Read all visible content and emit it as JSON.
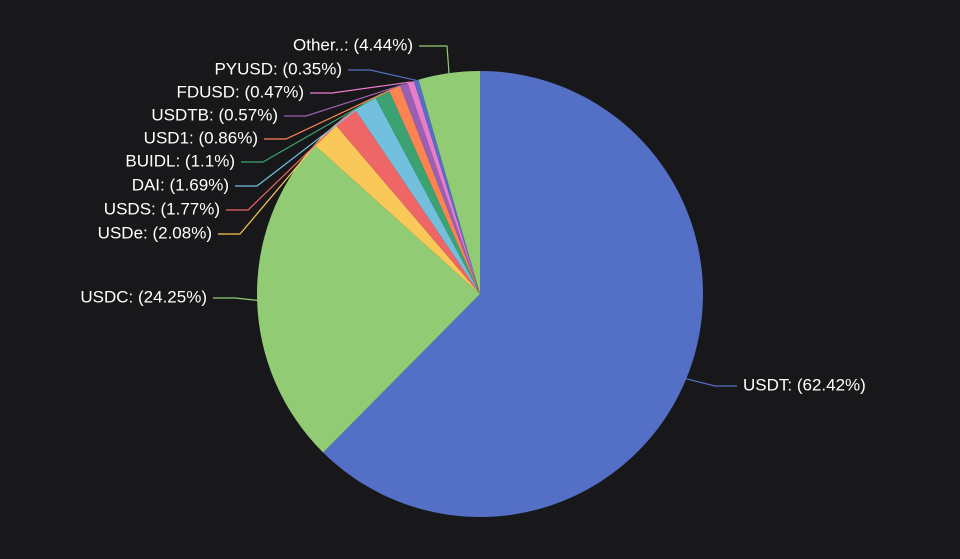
{
  "chart_data": {
    "type": "pie",
    "title": "",
    "slices": [
      {
        "name": "USDT",
        "value": 62.42,
        "label": "USDT: (62.42%)",
        "color": "#5470c6"
      },
      {
        "name": "USDC",
        "value": 24.25,
        "label": "USDC: (24.25%)",
        "color": "#91cc75"
      },
      {
        "name": "USDe",
        "value": 2.08,
        "label": "USDe: (2.08%)",
        "color": "#fac858"
      },
      {
        "name": "USDS",
        "value": 1.77,
        "label": "USDS: (1.77%)",
        "color": "#ee6666"
      },
      {
        "name": "DAI",
        "value": 1.69,
        "label": "DAI: (1.69%)",
        "color": "#73c0de"
      },
      {
        "name": "BUIDL",
        "value": 1.1,
        "label": "BUIDL: (1.1%)",
        "color": "#3ba272"
      },
      {
        "name": "USD1",
        "value": 0.86,
        "label": "USD1: (0.86%)",
        "color": "#fc8452"
      },
      {
        "name": "USDTB",
        "value": 0.57,
        "label": "USDTB: (0.57%)",
        "color": "#9a60b4"
      },
      {
        "name": "FDUSD",
        "value": 0.47,
        "label": "FDUSD: (0.47%)",
        "color": "#ea7ccc"
      },
      {
        "name": "PYUSD",
        "value": 0.35,
        "label": "PYUSD: (0.35%)",
        "color": "#5470c6"
      },
      {
        "name": "Other..",
        "value": 4.44,
        "label": "Other..: (4.44%)",
        "color": "#91cc75"
      }
    ],
    "background": "#18181b",
    "label_color": "#ffffff"
  }
}
